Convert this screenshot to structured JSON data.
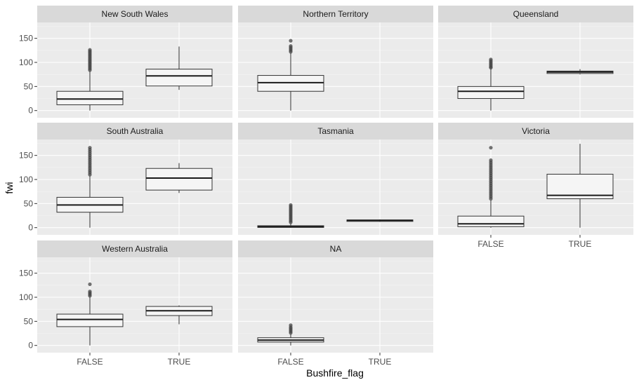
{
  "chart_data": {
    "type": "boxplot",
    "xlabel": "Bushfire_flag",
    "ylabel": "fwi",
    "ylim": [
      -15,
      183
    ],
    "y_ticks": [
      0,
      50,
      100,
      150
    ],
    "categories": [
      "FALSE",
      "TRUE"
    ],
    "grid": true,
    "colors": {
      "panel_bg": "#ebebeb",
      "strip_bg": "#d9d9d9",
      "grid_major": "#ffffff",
      "box_fill": "#f5f5f5",
      "box_line": "#333333",
      "outlier": "#444444",
      "axis_text": "#4d4d4d"
    },
    "panels": [
      {
        "strip": "New South Wales",
        "boxes": [
          {
            "category": "FALSE",
            "min": 0,
            "q1": 12,
            "median": 24,
            "q3": 40,
            "max": 82,
            "outliers": [
              84,
              87,
              90,
              93,
              96,
              99,
              102,
              105,
              108,
              111,
              114,
              117,
              120,
              123,
              126
            ]
          },
          {
            "category": "TRUE",
            "min": 43,
            "q1": 51,
            "median": 72,
            "q3": 86,
            "max": 133,
            "outliers": []
          }
        ]
      },
      {
        "strip": "Northern Territory",
        "boxes": [
          {
            "category": "FALSE",
            "min": 0,
            "q1": 40,
            "median": 58,
            "q3": 73,
            "max": 120,
            "outliers": [
              122,
              125,
              128,
              131,
              134,
              145
            ]
          }
        ]
      },
      {
        "strip": "Queensland",
        "boxes": [
          {
            "category": "FALSE",
            "min": 0,
            "q1": 25,
            "median": 40,
            "q3": 50,
            "max": 87,
            "outliers": [
              89,
              91,
              94,
              97,
              100,
              103,
              106
            ]
          },
          {
            "category": "TRUE",
            "min": 75,
            "q1": 77,
            "median": 80,
            "q3": 82,
            "max": 86,
            "outliers": []
          }
        ]
      },
      {
        "strip": "South Australia",
        "boxes": [
          {
            "category": "FALSE",
            "min": 0,
            "q1": 32,
            "median": 47,
            "q3": 63,
            "max": 108,
            "outliers": [
              110,
              114,
              118,
              122,
              126,
              130,
              134,
              138,
              142,
              146,
              150,
              154,
              158,
              162,
              166
            ]
          },
          {
            "category": "TRUE",
            "min": 72,
            "q1": 78,
            "median": 103,
            "q3": 123,
            "max": 134,
            "outliers": []
          }
        ]
      },
      {
        "strip": "Tasmania",
        "boxes": [
          {
            "category": "FALSE",
            "min": 0,
            "q1": 0.5,
            "median": 2,
            "q3": 4,
            "max": 9,
            "outliers": [
              11,
              14,
              17,
              20,
              23,
              26,
              29,
              32,
              35,
              38,
              41,
              44,
              47
            ]
          },
          {
            "category": "TRUE",
            "min": 12,
            "q1": 13,
            "median": 15,
            "q3": 16,
            "max": 17,
            "outliers": []
          }
        ]
      },
      {
        "strip": "Victoria",
        "boxes": [
          {
            "category": "FALSE",
            "min": 0,
            "q1": 2,
            "median": 8,
            "q3": 24,
            "max": 57,
            "outliers": [
              60,
              64,
              68,
              72,
              76,
              80,
              84,
              88,
              92,
              96,
              100,
              104,
              108,
              112,
              116,
              120,
              124,
              128,
              132,
              136,
              140,
              166
            ]
          },
          {
            "category": "TRUE",
            "min": 0,
            "q1": 60,
            "median": 67,
            "q3": 111,
            "max": 174,
            "outliers": []
          }
        ]
      },
      {
        "strip": "Western Australia",
        "boxes": [
          {
            "category": "FALSE",
            "min": 0,
            "q1": 39,
            "median": 54,
            "q3": 65,
            "max": 101,
            "outliers": [
              103,
              106,
              109,
              112,
              127
            ]
          },
          {
            "category": "TRUE",
            "min": 44,
            "q1": 62,
            "median": 72,
            "q3": 81,
            "max": 83,
            "outliers": []
          }
        ]
      },
      {
        "strip": "NA",
        "boxes": [
          {
            "category": "FALSE",
            "min": 0,
            "q1": 7,
            "median": 11,
            "q3": 16,
            "max": 24,
            "outliers": [
              26,
              29,
              32,
              35,
              38,
              42
            ]
          }
        ]
      }
    ]
  }
}
